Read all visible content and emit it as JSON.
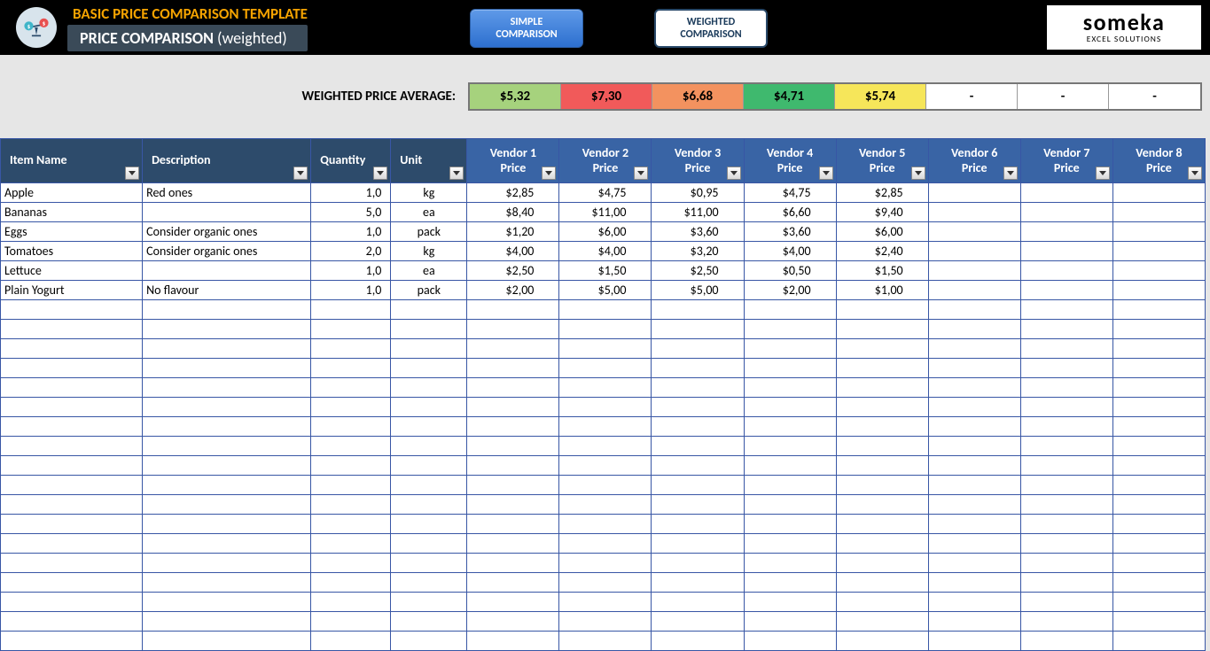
{
  "header": {
    "template_title": "BASIC PRICE COMPARISON TEMPLATE",
    "page_title_bold": "PRICE COMPARISON",
    "page_title_light": " (weighted)",
    "nav_simple_l1": "SIMPLE",
    "nav_simple_l2": "COMPARISON",
    "nav_weighted_l1": "WEIGHTED",
    "nav_weighted_l2": "COMPARISON",
    "brand_name": "someka",
    "brand_sub": "EXCEL SOLUTIONS"
  },
  "average": {
    "label": "WEIGHTED PRICE AVERAGE:",
    "cells": [
      {
        "value": "$5,32",
        "bg": "#a6d27d"
      },
      {
        "value": "$7,30",
        "bg": "#f15a5a"
      },
      {
        "value": "$6,68",
        "bg": "#f3925f"
      },
      {
        "value": "$4,71",
        "bg": "#3fb96e"
      },
      {
        "value": "$5,74",
        "bg": "#f6e65a"
      },
      {
        "value": "-",
        "bg": "#ffffff"
      },
      {
        "value": "-",
        "bg": "#ffffff"
      },
      {
        "value": "-",
        "bg": "#ffffff"
      }
    ]
  },
  "table": {
    "columns_dark": [
      "Item Name",
      "Description",
      "Quantity",
      "Unit"
    ],
    "columns_blue": [
      "Vendor 1 Price",
      "Vendor 2 Price",
      "Vendor 3 Price",
      "Vendor 4 Price",
      "Vendor 5 Price",
      "Vendor 6 Price",
      "Vendor 7 Price",
      "Vendor 8 Price"
    ],
    "rows": [
      {
        "name": "Apple",
        "desc": "Red ones",
        "qty": "1,0",
        "unit": "kg",
        "prices": [
          "$2,85",
          "$4,75",
          "$0,95",
          "$4,75",
          "$2,85",
          "",
          "",
          ""
        ]
      },
      {
        "name": "Bananas",
        "desc": "",
        "qty": "5,0",
        "unit": "ea",
        "prices": [
          "$8,40",
          "$11,00",
          "$11,00",
          "$6,60",
          "$9,40",
          "",
          "",
          ""
        ]
      },
      {
        "name": "Eggs",
        "desc": "Consider organic ones",
        "qty": "1,0",
        "unit": "pack",
        "prices": [
          "$1,20",
          "$6,00",
          "$3,60",
          "$3,60",
          "$6,00",
          "",
          "",
          ""
        ]
      },
      {
        "name": "Tomatoes",
        "desc": "Consider organic ones",
        "qty": "2,0",
        "unit": "kg",
        "prices": [
          "$4,00",
          "$4,00",
          "$3,20",
          "$4,00",
          "$2,40",
          "",
          "",
          ""
        ]
      },
      {
        "name": "Lettuce",
        "desc": "",
        "qty": "1,0",
        "unit": "ea",
        "prices": [
          "$2,50",
          "$1,50",
          "$2,50",
          "$0,50",
          "$1,50",
          "",
          "",
          ""
        ]
      },
      {
        "name": "Plain Yogurt",
        "desc": "No flavour",
        "qty": "1,0",
        "unit": "pack",
        "prices": [
          "$2,00",
          "$5,00",
          "$5,00",
          "$2,00",
          "$1,00",
          "",
          "",
          ""
        ]
      }
    ],
    "empty_rows": 18
  },
  "style": {
    "header_dark_bg": "#2d4b6b",
    "header_blue_bg": "#3964a5",
    "grid_border": "#3856a5",
    "page_bg": "#e6e6e6"
  }
}
